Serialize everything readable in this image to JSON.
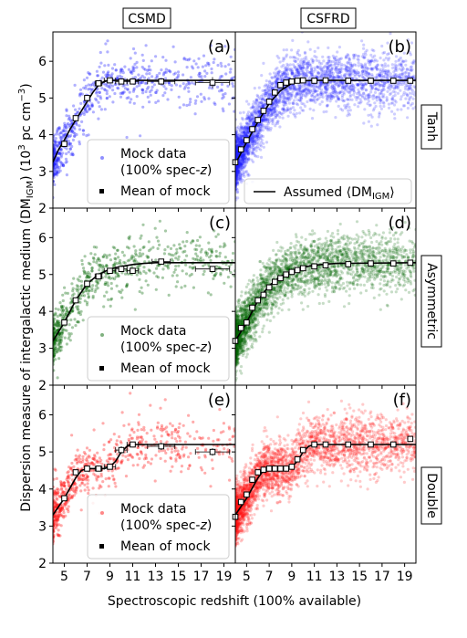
{
  "figure": {
    "col_titles": [
      "CSMD",
      "CSFRD"
    ],
    "row_titles": [
      "Tanh",
      "Asymmetric",
      "Double"
    ],
    "ylabel_main": "Dispersion measure of intergalactic medium (DM",
    "ylabel_sub": "IGM",
    "ylabel_tail": ") (10",
    "ylabel_sup": "3",
    "ylabel_unit": " pc cm",
    "ylabel_unit_sup": "−3",
    "ylabel_end": ")",
    "xlabel": "Spectroscopic redshift (100% available)",
    "legend_left": {
      "mock_line1": "Mock data",
      "mock_line2_pre": "(100% spec-",
      "mock_line2_z": "z",
      "mock_line2_post": ")",
      "mean": "Mean of mock"
    },
    "legend_right": {
      "assumed_pre": "Assumed ⟨DM",
      "assumed_sub": "IGM",
      "assumed_post": "⟩"
    },
    "colors": {
      "tanh": "#1f1fff",
      "asymmetric": "#006400",
      "double": "#ff1010"
    }
  },
  "chart_data": [
    {
      "type": "scatter",
      "panel": "(a)",
      "column": "CSMD",
      "row": "Tanh",
      "xlim": [
        4,
        20
      ],
      "ylim": [
        2,
        6.8
      ],
      "x_ticks": [
        5,
        7,
        9,
        11,
        13,
        15,
        17,
        19
      ],
      "y_ticks": [
        2,
        3,
        4,
        5,
        6
      ],
      "assumed": {
        "x": [
          4,
          4.5,
          5,
          5.5,
          6,
          6.5,
          7,
          7.5,
          8,
          8.5,
          9,
          9.5,
          10,
          20
        ],
        "y": [
          3.25,
          3.6,
          3.85,
          4.15,
          4.4,
          4.65,
          4.9,
          5.15,
          5.35,
          5.45,
          5.48,
          5.48,
          5.48,
          5.48
        ]
      },
      "mean": {
        "x": [
          5,
          6,
          7,
          8,
          9,
          10,
          11,
          13.5,
          18
        ],
        "y": [
          3.75,
          4.45,
          5.0,
          5.4,
          5.48,
          5.45,
          5.45,
          5.45,
          5.42
        ],
        "xerr": [
          0,
          0,
          0,
          0.3,
          0.5,
          0.5,
          0.5,
          1.2,
          1.5
        ],
        "yerr": [
          0,
          0,
          0,
          0,
          0,
          0,
          0.05,
          0.05,
          0.15
        ]
      }
    },
    {
      "type": "scatter",
      "panel": "(b)",
      "column": "CSFRD",
      "row": "Tanh",
      "xlim": [
        4,
        20
      ],
      "ylim": [
        2,
        6.8
      ],
      "x_ticks": [
        5,
        7,
        9,
        11,
        13,
        15,
        17,
        19
      ],
      "y_ticks": [
        2,
        3,
        4,
        5,
        6
      ],
      "assumed": {
        "x": [
          4,
          5,
          6,
          7,
          8,
          9,
          10,
          11,
          20
        ],
        "y": [
          3.2,
          3.8,
          4.35,
          4.85,
          5.2,
          5.4,
          5.47,
          5.48,
          5.48
        ]
      },
      "mean": {
        "x": [
          4,
          4.5,
          5,
          5.5,
          6,
          6.5,
          7,
          7.5,
          8,
          8.5,
          9,
          9.5,
          10,
          11,
          12,
          14,
          16,
          18,
          19.5
        ],
        "y": [
          3.25,
          3.6,
          3.85,
          4.15,
          4.4,
          4.65,
          4.9,
          5.15,
          5.35,
          5.42,
          5.45,
          5.47,
          5.48,
          5.47,
          5.48,
          5.47,
          5.47,
          5.47,
          5.47
        ],
        "xerr": [],
        "yerr": []
      }
    },
    {
      "type": "scatter",
      "panel": "(c)",
      "column": "CSMD",
      "row": "Asymmetric",
      "xlim": [
        4,
        20
      ],
      "ylim": [
        2,
        6.8
      ],
      "x_ticks": [
        5,
        7,
        9,
        11,
        13,
        15,
        17,
        19
      ],
      "y_ticks": [
        2,
        3,
        4,
        5,
        6
      ],
      "assumed": {
        "x": [
          4,
          5,
          6,
          7,
          8,
          9,
          10,
          11,
          12,
          13,
          20
        ],
        "y": [
          3.2,
          3.7,
          4.3,
          4.75,
          5.0,
          5.15,
          5.22,
          5.27,
          5.3,
          5.32,
          5.32
        ]
      },
      "mean": {
        "x": [
          5,
          6,
          7,
          8,
          9,
          10,
          11,
          13.5,
          18
        ],
        "y": [
          3.7,
          4.3,
          4.75,
          4.95,
          5.1,
          5.15,
          5.1,
          5.35,
          5.15
        ],
        "xerr": [
          0,
          0,
          0,
          0.3,
          0.5,
          0.5,
          0.5,
          0.8,
          1.5
        ],
        "yerr": [
          0,
          0,
          0,
          0,
          0,
          0,
          0,
          0.05,
          0.05
        ]
      }
    },
    {
      "type": "scatter",
      "panel": "(d)",
      "column": "CSFRD",
      "row": "Asymmetric",
      "xlim": [
        4,
        20
      ],
      "ylim": [
        2,
        6.8
      ],
      "x_ticks": [
        5,
        7,
        9,
        11,
        13,
        15,
        17,
        19
      ],
      "y_ticks": [
        2,
        3,
        4,
        5,
        6
      ],
      "assumed": {
        "x": [
          4,
          5,
          6,
          7,
          8,
          9,
          10,
          11,
          12,
          13,
          20
        ],
        "y": [
          3.2,
          3.7,
          4.3,
          4.7,
          4.95,
          5.1,
          5.2,
          5.25,
          5.28,
          5.3,
          5.32
        ]
      },
      "mean": {
        "x": [
          4,
          4.5,
          5,
          5.5,
          6,
          6.5,
          7,
          7.5,
          8,
          8.5,
          9,
          9.5,
          10,
          11,
          12,
          14,
          16,
          18,
          19.5
        ],
        "y": [
          3.2,
          3.55,
          3.7,
          4.1,
          4.3,
          4.45,
          4.65,
          4.8,
          4.9,
          5.0,
          5.07,
          5.12,
          5.17,
          5.22,
          5.25,
          5.28,
          5.3,
          5.3,
          5.32
        ],
        "xerr": [],
        "yerr": []
      }
    },
    {
      "type": "scatter",
      "panel": "(e)",
      "column": "CSMD",
      "row": "Double",
      "xlim": [
        4,
        20
      ],
      "ylim": [
        2,
        6.8
      ],
      "x_ticks": [
        5,
        7,
        9,
        11,
        13,
        15,
        17,
        19
      ],
      "y_ticks": [
        2,
        3,
        4,
        5,
        6
      ],
      "assumed": {
        "x": [
          4,
          5,
          6,
          6.5,
          7,
          8,
          8.5,
          9,
          9.5,
          10,
          10.5,
          11,
          20
        ],
        "y": [
          3.3,
          3.75,
          4.3,
          4.5,
          4.55,
          4.55,
          4.55,
          4.6,
          4.75,
          5.0,
          5.15,
          5.2,
          5.2
        ]
      },
      "mean": {
        "x": [
          5,
          6,
          7,
          8,
          9,
          10,
          11,
          13.5,
          18
        ],
        "y": [
          3.75,
          4.45,
          4.55,
          4.55,
          4.6,
          5.05,
          5.2,
          5.15,
          5.0
        ],
        "xerr": [
          0,
          0,
          0,
          0.3,
          0.5,
          0.5,
          0.5,
          1.2,
          1.5
        ],
        "yerr": [
          0,
          0,
          0,
          0,
          0,
          0.1,
          0,
          0.1,
          0.1
        ]
      }
    },
    {
      "type": "scatter",
      "panel": "(f)",
      "column": "CSFRD",
      "row": "Double",
      "xlim": [
        4,
        20
      ],
      "ylim": [
        2,
        6.8
      ],
      "x_ticks": [
        5,
        7,
        9,
        11,
        13,
        15,
        17,
        19
      ],
      "y_ticks": [
        2,
        3,
        4,
        5,
        6
      ],
      "assumed": {
        "x": [
          4,
          5,
          6,
          6.5,
          7,
          8,
          8.5,
          9,
          9.5,
          10,
          10.5,
          11,
          20
        ],
        "y": [
          3.3,
          3.75,
          4.3,
          4.5,
          4.55,
          4.55,
          4.55,
          4.6,
          4.75,
          5.0,
          5.15,
          5.2,
          5.2
        ]
      },
      "mean": {
        "x": [
          4,
          4.5,
          5,
          5.5,
          6,
          6.5,
          7,
          7.5,
          8,
          8.5,
          9,
          9.5,
          10,
          11,
          12,
          14,
          16,
          18,
          19.5
        ],
        "y": [
          3.25,
          3.65,
          3.85,
          4.25,
          4.45,
          4.52,
          4.55,
          4.55,
          4.55,
          4.55,
          4.6,
          4.8,
          5.05,
          5.2,
          5.2,
          5.2,
          5.2,
          5.2,
          5.35
        ],
        "xerr": [],
        "yerr": []
      }
    }
  ]
}
